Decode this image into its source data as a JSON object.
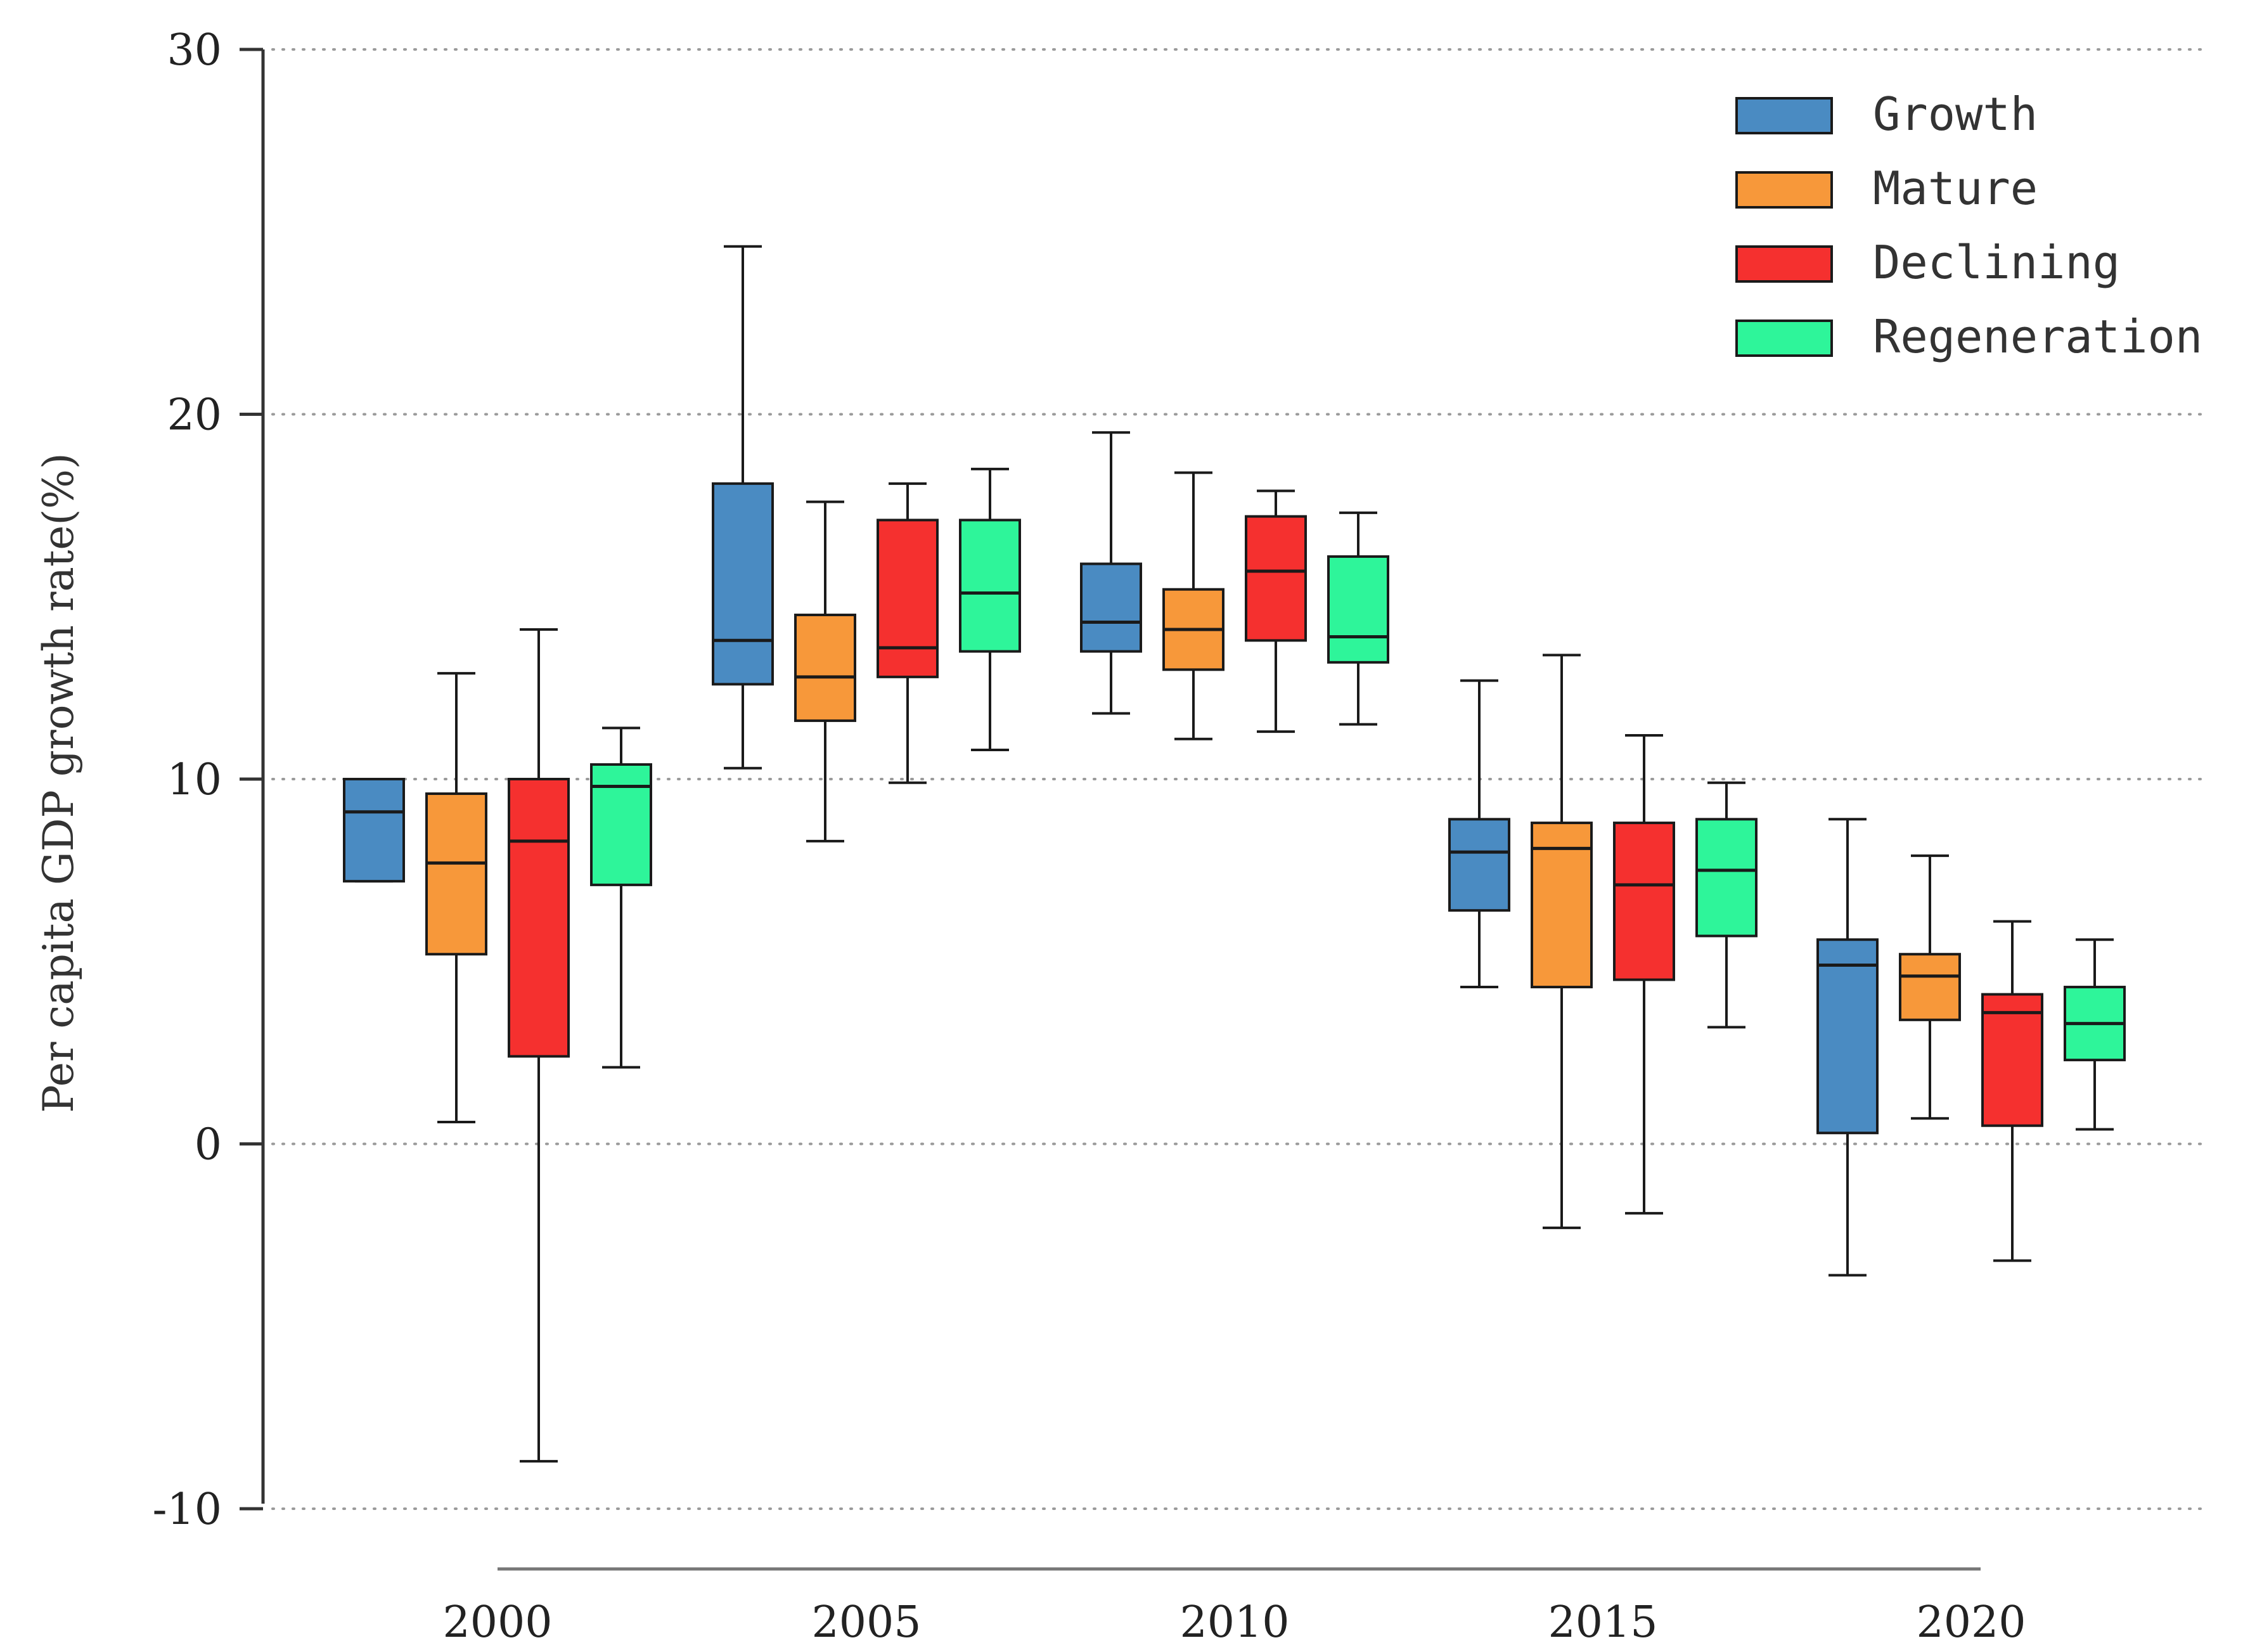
{
  "chart_data": {
    "type": "boxplot",
    "title": "",
    "xlabel": "",
    "ylabel": "Per capita GDP growth rate(%)",
    "ylim": [
      -10,
      30
    ],
    "yticks": [
      -10,
      0,
      10,
      20,
      30
    ],
    "grid": "horizontal dotted",
    "legend_position": "top-right",
    "categories": [
      "2000",
      "2005",
      "2010",
      "2015",
      "2020"
    ],
    "series": [
      {
        "name": "Growth",
        "color": "#4a8bc2",
        "boxes": [
          {
            "min": 7.2,
            "q1": 7.2,
            "median": 9.1,
            "q3": 10.0,
            "max": 10.0
          },
          {
            "min": 10.3,
            "q1": 12.6,
            "median": 13.8,
            "q3": 18.1,
            "max": 24.6
          },
          {
            "min": 11.8,
            "q1": 13.5,
            "median": 14.3,
            "q3": 15.9,
            "max": 19.5
          },
          {
            "min": 4.3,
            "q1": 6.4,
            "median": 8.0,
            "q3": 8.9,
            "max": 12.7
          },
          {
            "min": -3.6,
            "q1": 0.3,
            "median": 4.9,
            "q3": 5.6,
            "max": 8.9
          }
        ]
      },
      {
        "name": "Mature",
        "color": "#f7983a",
        "boxes": [
          {
            "min": 0.6,
            "q1": 5.2,
            "median": 7.7,
            "q3": 9.6,
            "max": 12.9
          },
          {
            "min": 8.3,
            "q1": 11.6,
            "median": 12.8,
            "q3": 14.5,
            "max": 17.6
          },
          {
            "min": 11.1,
            "q1": 13.0,
            "median": 14.1,
            "q3": 15.2,
            "max": 18.4
          },
          {
            "min": -2.3,
            "q1": 4.3,
            "median": 8.1,
            "q3": 8.8,
            "max": 13.4
          },
          {
            "min": 0.7,
            "q1": 3.4,
            "median": 4.6,
            "q3": 5.2,
            "max": 7.9
          }
        ]
      },
      {
        "name": "Declining",
        "color": "#f5302f",
        "boxes": [
          {
            "min": -8.7,
            "q1": 2.4,
            "median": 8.3,
            "q3": 10.0,
            "max": 14.1
          },
          {
            "min": 9.9,
            "q1": 12.8,
            "median": 13.6,
            "q3": 17.1,
            "max": 18.1
          },
          {
            "min": 11.3,
            "q1": 13.8,
            "median": 15.7,
            "q3": 17.2,
            "max": 17.9
          },
          {
            "min": -1.9,
            "q1": 4.5,
            "median": 7.1,
            "q3": 8.8,
            "max": 11.2
          },
          {
            "min": -3.2,
            "q1": 0.5,
            "median": 3.6,
            "q3": 4.1,
            "max": 6.1
          }
        ]
      },
      {
        "name": "Regeneration",
        "color": "#2ef59a",
        "boxes": [
          {
            "min": 2.1,
            "q1": 7.1,
            "median": 9.8,
            "q3": 10.4,
            "max": 11.4
          },
          {
            "min": 10.8,
            "q1": 13.5,
            "median": 15.1,
            "q3": 17.1,
            "max": 18.5
          },
          {
            "min": 11.5,
            "q1": 13.2,
            "median": 13.9,
            "q3": 16.1,
            "max": 17.3
          },
          {
            "min": 3.2,
            "q1": 5.7,
            "median": 7.5,
            "q3": 8.9,
            "max": 9.9
          },
          {
            "min": 0.4,
            "q1": 2.3,
            "median": 3.3,
            "q3": 4.3,
            "max": 5.6
          }
        ]
      }
    ]
  }
}
